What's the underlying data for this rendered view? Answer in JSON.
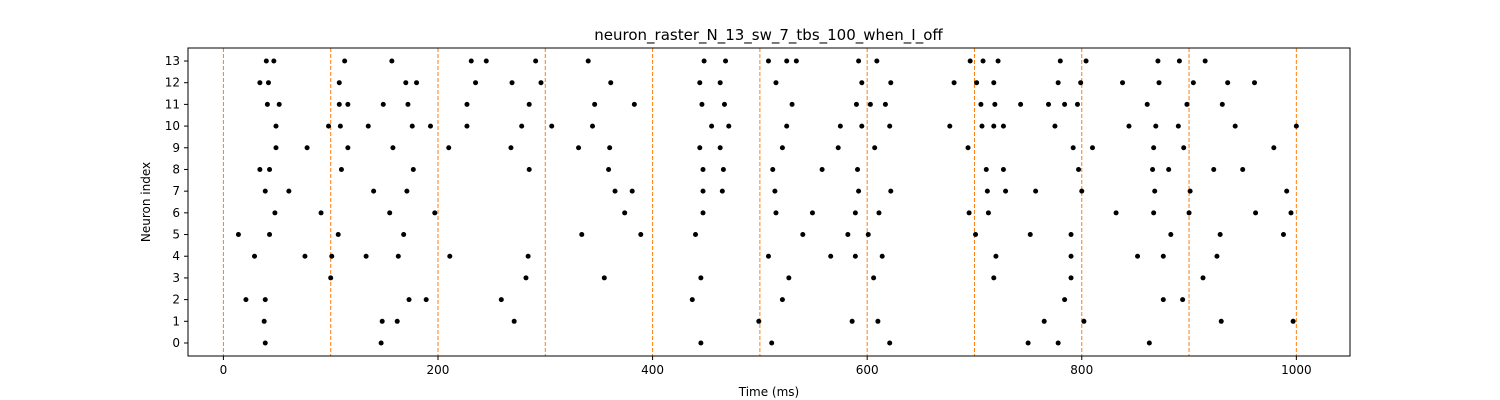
{
  "chart_data": {
    "type": "scatter",
    "title": "neuron_raster_N_13_sw_7_tbs_100_when_I_off",
    "xlabel": "Time (ms)",
    "ylabel": "Neuron index",
    "xlim": [
      -33,
      1050
    ],
    "ylim": [
      -0.6,
      13.6
    ],
    "xticks": [
      0,
      200,
      400,
      600,
      800,
      1000
    ],
    "yticks": [
      0,
      1,
      2,
      3,
      4,
      5,
      6,
      7,
      8,
      9,
      10,
      11,
      12,
      13
    ],
    "grid": false,
    "colors": {
      "spike": "#000000",
      "vline": "#ff7f0e"
    },
    "vlines": [
      0,
      100,
      200,
      300,
      400,
      500,
      600,
      700,
      800,
      900,
      1000
    ],
    "series": [
      {
        "marker": "dot",
        "points": [
          [
            39,
            0
          ],
          [
            147,
            0
          ],
          [
            445,
            0
          ],
          [
            511,
            0
          ],
          [
            621,
            0
          ],
          [
            750,
            0
          ],
          [
            778,
            0
          ],
          [
            863,
            0
          ],
          [
            38,
            1
          ],
          [
            148,
            1
          ],
          [
            162,
            1
          ],
          [
            271,
            1
          ],
          [
            499,
            1
          ],
          [
            586,
            1
          ],
          [
            610,
            1
          ],
          [
            765,
            1
          ],
          [
            802,
            1
          ],
          [
            930,
            1
          ],
          [
            997,
            1
          ],
          [
            21,
            2
          ],
          [
            39,
            2
          ],
          [
            173,
            2
          ],
          [
            189,
            2
          ],
          [
            259,
            2
          ],
          [
            437,
            2
          ],
          [
            521,
            2
          ],
          [
            784,
            2
          ],
          [
            876,
            2
          ],
          [
            894,
            2
          ],
          [
            100,
            3
          ],
          [
            282,
            3
          ],
          [
            355,
            3
          ],
          [
            445,
            3
          ],
          [
            527,
            3
          ],
          [
            606,
            3
          ],
          [
            718,
            3
          ],
          [
            790,
            3
          ],
          [
            913,
            3
          ],
          [
            29,
            4
          ],
          [
            76,
            4
          ],
          [
            101,
            4
          ],
          [
            133,
            4
          ],
          [
            163,
            4
          ],
          [
            211,
            4
          ],
          [
            284,
            4
          ],
          [
            508,
            4
          ],
          [
            566,
            4
          ],
          [
            589,
            4
          ],
          [
            614,
            4
          ],
          [
            720,
            4
          ],
          [
            790,
            4
          ],
          [
            852,
            4
          ],
          [
            876,
            4
          ],
          [
            926,
            4
          ],
          [
            14,
            5
          ],
          [
            43,
            5
          ],
          [
            107,
            5
          ],
          [
            168,
            5
          ],
          [
            334,
            5
          ],
          [
            389,
            5
          ],
          [
            440,
            5
          ],
          [
            540,
            5
          ],
          [
            582,
            5
          ],
          [
            601,
            5
          ],
          [
            701,
            5
          ],
          [
            752,
            5
          ],
          [
            790,
            5
          ],
          [
            883,
            5
          ],
          [
            929,
            5
          ],
          [
            988,
            5
          ],
          [
            48,
            6
          ],
          [
            91,
            6
          ],
          [
            155,
            6
          ],
          [
            197,
            6
          ],
          [
            374,
            6
          ],
          [
            447,
            6
          ],
          [
            515,
            6
          ],
          [
            549,
            6
          ],
          [
            589,
            6
          ],
          [
            611,
            6
          ],
          [
            695,
            6
          ],
          [
            713,
            6
          ],
          [
            832,
            6
          ],
          [
            867,
            6
          ],
          [
            900,
            6
          ],
          [
            962,
            6
          ],
          [
            995,
            6
          ],
          [
            39,
            7
          ],
          [
            61,
            7
          ],
          [
            140,
            7
          ],
          [
            171,
            7
          ],
          [
            365,
            7
          ],
          [
            381,
            7
          ],
          [
            447,
            7
          ],
          [
            465,
            7
          ],
          [
            514,
            7
          ],
          [
            592,
            7
          ],
          [
            622,
            7
          ],
          [
            712,
            7
          ],
          [
            729,
            7
          ],
          [
            757,
            7
          ],
          [
            800,
            7
          ],
          [
            868,
            7
          ],
          [
            901,
            7
          ],
          [
            991,
            7
          ],
          [
            34,
            8
          ],
          [
            43,
            8
          ],
          [
            110,
            8
          ],
          [
            177,
            8
          ],
          [
            285,
            8
          ],
          [
            359,
            8
          ],
          [
            447,
            8
          ],
          [
            466,
            8
          ],
          [
            512,
            8
          ],
          [
            558,
            8
          ],
          [
            591,
            8
          ],
          [
            711,
            8
          ],
          [
            727,
            8
          ],
          [
            797,
            8
          ],
          [
            866,
            8
          ],
          [
            881,
            8
          ],
          [
            923,
            8
          ],
          [
            950,
            8
          ],
          [
            49,
            9
          ],
          [
            78,
            9
          ],
          [
            116,
            9
          ],
          [
            158,
            9
          ],
          [
            210,
            9
          ],
          [
            268,
            9
          ],
          [
            331,
            9
          ],
          [
            360,
            9
          ],
          [
            444,
            9
          ],
          [
            463,
            9
          ],
          [
            521,
            9
          ],
          [
            573,
            9
          ],
          [
            607,
            9
          ],
          [
            694,
            9
          ],
          [
            792,
            9
          ],
          [
            810,
            9
          ],
          [
            867,
            9
          ],
          [
            895,
            9
          ],
          [
            979,
            9
          ],
          [
            49,
            10
          ],
          [
            98,
            10
          ],
          [
            109,
            10
          ],
          [
            135,
            10
          ],
          [
            176,
            10
          ],
          [
            193,
            10
          ],
          [
            227,
            10
          ],
          [
            278,
            10
          ],
          [
            306,
            10
          ],
          [
            344,
            10
          ],
          [
            455,
            10
          ],
          [
            471,
            10
          ],
          [
            525,
            10
          ],
          [
            575,
            10
          ],
          [
            595,
            10
          ],
          [
            621,
            10
          ],
          [
            677,
            10
          ],
          [
            707,
            10
          ],
          [
            718,
            10
          ],
          [
            727,
            10
          ],
          [
            775,
            10
          ],
          [
            844,
            10
          ],
          [
            869,
            10
          ],
          [
            890,
            10
          ],
          [
            943,
            10
          ],
          [
            1000,
            10
          ],
          [
            41,
            11
          ],
          [
            52,
            11
          ],
          [
            108,
            11
          ],
          [
            116,
            11
          ],
          [
            149,
            11
          ],
          [
            172,
            11
          ],
          [
            227,
            11
          ],
          [
            285,
            11
          ],
          [
            346,
            11
          ],
          [
            383,
            11
          ],
          [
            446,
            11
          ],
          [
            467,
            11
          ],
          [
            530,
            11
          ],
          [
            590,
            11
          ],
          [
            603,
            11
          ],
          [
            617,
            11
          ],
          [
            706,
            11
          ],
          [
            719,
            11
          ],
          [
            743,
            11
          ],
          [
            769,
            11
          ],
          [
            784,
            11
          ],
          [
            796,
            11
          ],
          [
            861,
            11
          ],
          [
            898,
            11
          ],
          [
            931,
            11
          ],
          [
            34,
            12
          ],
          [
            42,
            12
          ],
          [
            108,
            12
          ],
          [
            170,
            12
          ],
          [
            180,
            12
          ],
          [
            235,
            12
          ],
          [
            269,
            12
          ],
          [
            296,
            12
          ],
          [
            361,
            12
          ],
          [
            444,
            12
          ],
          [
            463,
            12
          ],
          [
            515,
            12
          ],
          [
            595,
            12
          ],
          [
            622,
            12
          ],
          [
            681,
            12
          ],
          [
            702,
            12
          ],
          [
            718,
            12
          ],
          [
            778,
            12
          ],
          [
            799,
            12
          ],
          [
            838,
            12
          ],
          [
            872,
            12
          ],
          [
            904,
            12
          ],
          [
            936,
            12
          ],
          [
            961,
            12
          ],
          [
            40,
            13
          ],
          [
            47,
            13
          ],
          [
            113,
            13
          ],
          [
            157,
            13
          ],
          [
            231,
            13
          ],
          [
            245,
            13
          ],
          [
            291,
            13
          ],
          [
            340,
            13
          ],
          [
            448,
            13
          ],
          [
            468,
            13
          ],
          [
            508,
            13
          ],
          [
            525,
            13
          ],
          [
            534,
            13
          ],
          [
            592,
            13
          ],
          [
            609,
            13
          ],
          [
            696,
            13
          ],
          [
            708,
            13
          ],
          [
            722,
            13
          ],
          [
            780,
            13
          ],
          [
            804,
            13
          ],
          [
            871,
            13
          ],
          [
            891,
            13
          ],
          [
            915,
            13
          ]
        ]
      }
    ]
  }
}
